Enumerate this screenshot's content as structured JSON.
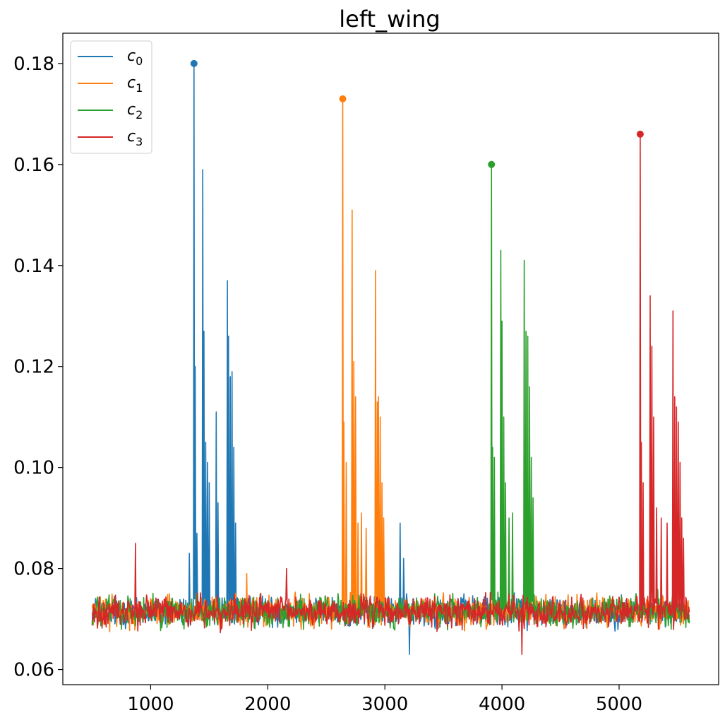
{
  "chart_data": {
    "type": "line",
    "title": "left_wing",
    "xlabel": "",
    "ylabel": "",
    "xlim": [
      250,
      5850
    ],
    "ylim": [
      0.057,
      0.186
    ],
    "x_ticks": [
      1000,
      2000,
      3000,
      4000,
      5000
    ],
    "y_ticks": [
      0.06,
      0.08,
      0.1,
      0.12,
      0.14,
      0.16,
      0.18
    ],
    "y_tick_labels": [
      "0.06",
      "0.08",
      "0.10",
      "0.12",
      "0.14",
      "0.16",
      "0.18"
    ],
    "x_range": [
      500,
      5600
    ],
    "baseline": 0.0715,
    "noise_amplitude": 0.0045,
    "grid": false,
    "legend_position": "top-left",
    "series": [
      {
        "name": "c",
        "subscript": "0",
        "color": "#1f77b4",
        "peak": {
          "x": 1370,
          "y": 0.18
        },
        "bursts": [
          {
            "x": 1330,
            "y": 0.083
          },
          {
            "x": 1380,
            "y": 0.12
          },
          {
            "x": 1395,
            "y": 0.087
          },
          {
            "x": 1445,
            "y": 0.159
          },
          {
            "x": 1455,
            "y": 0.127
          },
          {
            "x": 1470,
            "y": 0.105
          },
          {
            "x": 1485,
            "y": 0.101
          },
          {
            "x": 1500,
            "y": 0.097
          },
          {
            "x": 1560,
            "y": 0.111
          },
          {
            "x": 1575,
            "y": 0.093
          },
          {
            "x": 1655,
            "y": 0.137
          },
          {
            "x": 1665,
            "y": 0.126
          },
          {
            "x": 1680,
            "y": 0.118
          },
          {
            "x": 1695,
            "y": 0.119
          },
          {
            "x": 1710,
            "y": 0.104
          },
          {
            "x": 1725,
            "y": 0.089
          },
          {
            "x": 3130,
            "y": 0.089
          },
          {
            "x": 3160,
            "y": 0.082
          }
        ]
      },
      {
        "name": "c",
        "subscript": "1",
        "color": "#ff7f0e",
        "peak": {
          "x": 2640,
          "y": 0.173
        },
        "bursts": [
          {
            "x": 2650,
            "y": 0.109
          },
          {
            "x": 2670,
            "y": 0.101
          },
          {
            "x": 2720,
            "y": 0.151
          },
          {
            "x": 2735,
            "y": 0.121
          },
          {
            "x": 2750,
            "y": 0.114
          },
          {
            "x": 2770,
            "y": 0.089
          },
          {
            "x": 2800,
            "y": 0.091
          },
          {
            "x": 2840,
            "y": 0.088
          },
          {
            "x": 2920,
            "y": 0.139
          },
          {
            "x": 2935,
            "y": 0.113
          },
          {
            "x": 2945,
            "y": 0.114
          },
          {
            "x": 2960,
            "y": 0.11
          },
          {
            "x": 2975,
            "y": 0.097
          },
          {
            "x": 2990,
            "y": 0.09
          }
        ]
      },
      {
        "name": "c",
        "subscript": "2",
        "color": "#2ca02c",
        "peak": {
          "x": 3910,
          "y": 0.16
        },
        "bursts": [
          {
            "x": 3920,
            "y": 0.104
          },
          {
            "x": 3935,
            "y": 0.102
          },
          {
            "x": 3990,
            "y": 0.143
          },
          {
            "x": 4000,
            "y": 0.129
          },
          {
            "x": 4015,
            "y": 0.11
          },
          {
            "x": 4030,
            "y": 0.097
          },
          {
            "x": 4060,
            "y": 0.09
          },
          {
            "x": 4090,
            "y": 0.091
          },
          {
            "x": 4190,
            "y": 0.141
          },
          {
            "x": 4205,
            "y": 0.127
          },
          {
            "x": 4220,
            "y": 0.126
          },
          {
            "x": 4235,
            "y": 0.116
          },
          {
            "x": 4250,
            "y": 0.102
          },
          {
            "x": 4265,
            "y": 0.094
          }
        ]
      },
      {
        "name": "c",
        "subscript": "3",
        "color": "#d62728",
        "peak": {
          "x": 5180,
          "y": 0.166
        },
        "bursts": [
          {
            "x": 5190,
            "y": 0.105
          },
          {
            "x": 5205,
            "y": 0.097
          },
          {
            "x": 5265,
            "y": 0.134
          },
          {
            "x": 5280,
            "y": 0.124
          },
          {
            "x": 5295,
            "y": 0.11
          },
          {
            "x": 5320,
            "y": 0.092
          },
          {
            "x": 5360,
            "y": 0.09
          },
          {
            "x": 5410,
            "y": 0.089
          },
          {
            "x": 5460,
            "y": 0.131
          },
          {
            "x": 5475,
            "y": 0.114
          },
          {
            "x": 5490,
            "y": 0.112
          },
          {
            "x": 5505,
            "y": 0.109
          },
          {
            "x": 5520,
            "y": 0.101
          },
          {
            "x": 5535,
            "y": 0.09
          },
          {
            "x": 5550,
            "y": 0.086
          }
        ]
      }
    ],
    "outliers": [
      {
        "series": 3,
        "x": 870,
        "y": 0.085
      },
      {
        "series": 1,
        "x": 1820,
        "y": 0.079
      },
      {
        "series": 3,
        "x": 2160,
        "y": 0.08
      },
      {
        "series": 0,
        "x": 3210,
        "y": 0.063
      },
      {
        "series": 3,
        "x": 4170,
        "y": 0.063
      }
    ]
  }
}
